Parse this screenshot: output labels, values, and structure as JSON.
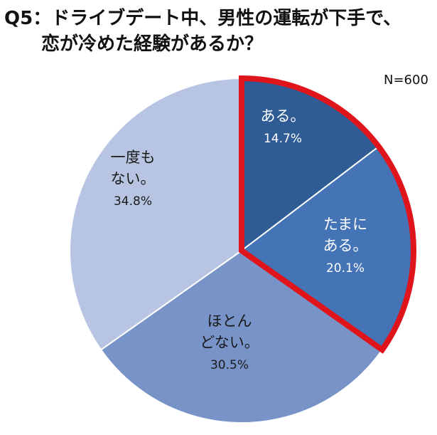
{
  "chart_data": {
    "type": "pie",
    "title_line1": "Q5：ドライブデート中、男性の運転が下手で、",
    "title_line2": "恋が冷めた経験があるか？",
    "note": "N=600",
    "slices": [
      {
        "label_lines": [
          "ある。"
        ],
        "value": 14.7,
        "value_text": "14.7%",
        "color": "#2f5c94",
        "highlight": true
      },
      {
        "label_lines": [
          "たまに",
          "ある。"
        ],
        "value": 20.1,
        "value_text": "20.1%",
        "color": "#4473b6",
        "highlight": true
      },
      {
        "label_lines": [
          "ほとん",
          "どない。"
        ],
        "value": 30.5,
        "value_text": "30.5%",
        "color": "#7893c8",
        "highlight": false
      },
      {
        "label_lines": [
          "一度も",
          "ない。"
        ],
        "value": 34.8,
        "value_text": "34.8%",
        "color": "#b7c5e3",
        "highlight": false
      }
    ],
    "highlight_color": "#e0141b",
    "start_angle_deg": 0,
    "direction": "clockwise"
  }
}
